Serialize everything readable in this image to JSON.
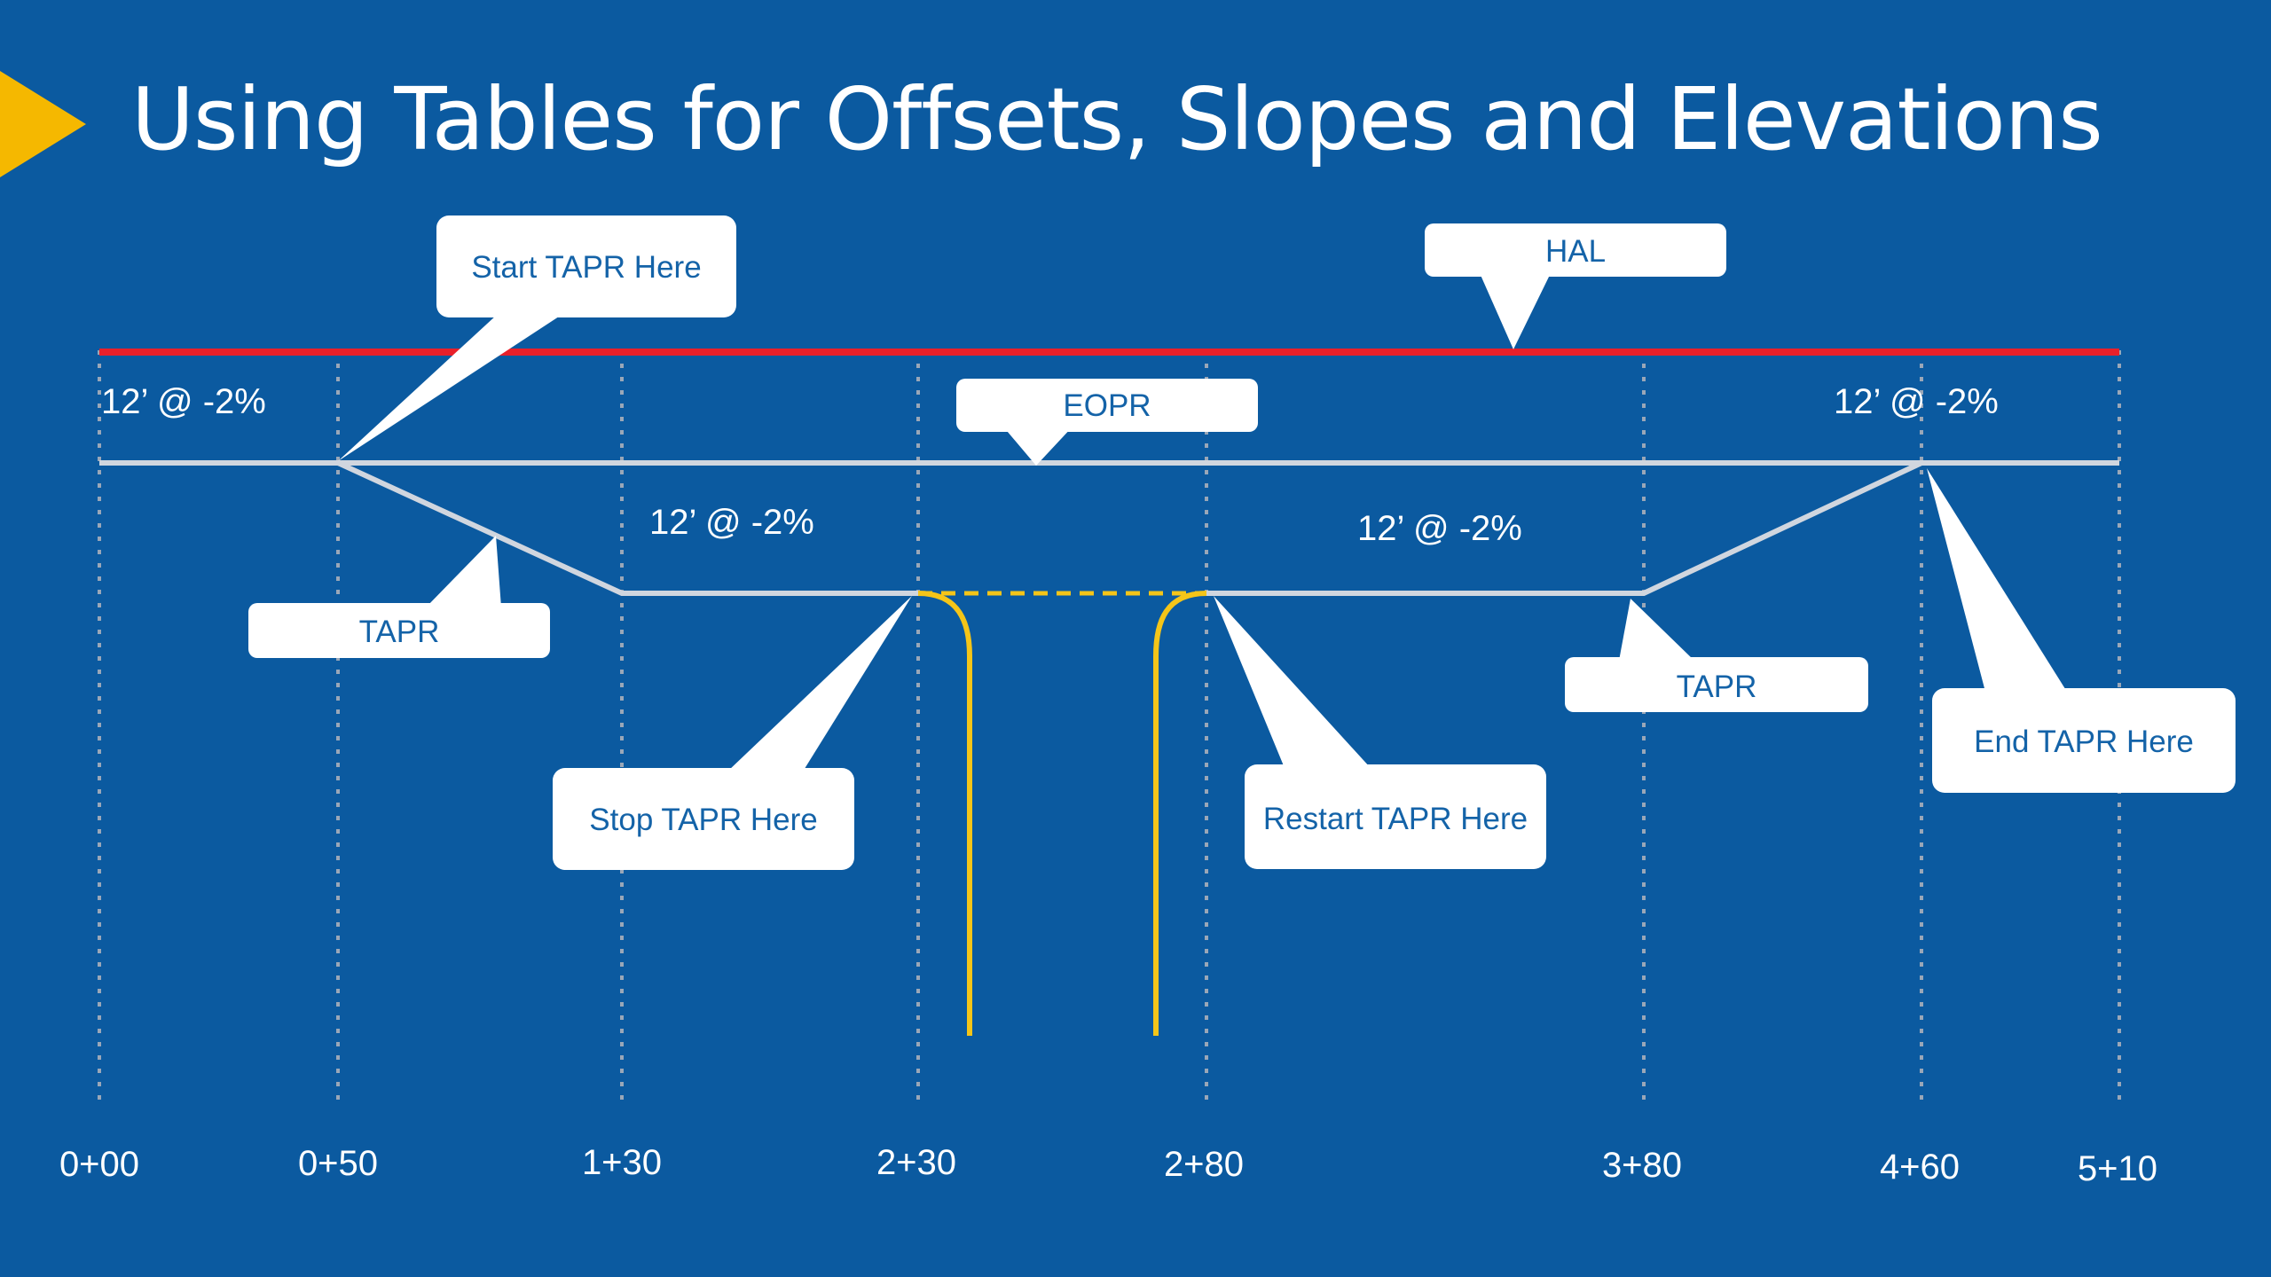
{
  "title": "Using Tables for Offsets, Slopes and Elevations",
  "colors": {
    "background": "#0b5aa0",
    "accent_arrow": "#f5b800",
    "hal_line": "#e8202a",
    "profile_line": "#d0d6df",
    "curb": "#f5c518",
    "station_grid": "#9aa7b8"
  },
  "callouts": {
    "start_tapr": "Start TAPR Here",
    "hal": "HAL",
    "eopr": "EOPR",
    "tapr_left": "TAPR",
    "stop_tapr": "Stop TAPR Here",
    "restart_tapr": "Restart TAPR Here",
    "tapr_right": "TAPR",
    "end_tapr": "End TAPR Here"
  },
  "slope_labels": {
    "left": "12’ @ -2%",
    "middle_left": "12’ @ -2%",
    "middle_right": "12’ @ -2%",
    "right": "12’ @ -2%"
  },
  "stations": [
    "0+00",
    "0+50",
    "1+30",
    "2+30",
    "2+80",
    "3+80",
    "4+60",
    "5+10"
  ]
}
